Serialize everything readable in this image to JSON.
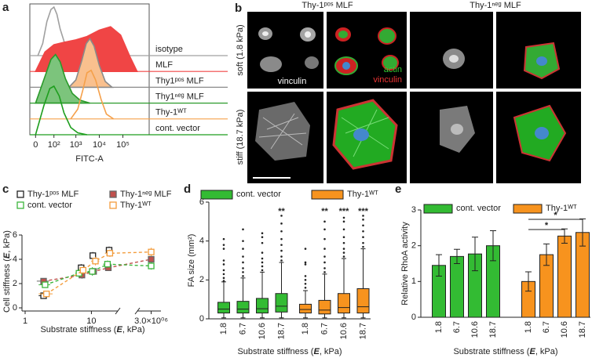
{
  "chart_data": [
    {
      "panel": "a",
      "type": "density",
      "xlabel": "FITC-A",
      "xscale": "symlog",
      "xlim": [
        -15,
        1300000
      ],
      "ylim": [
        0,
        100
      ],
      "xticks": [
        0,
        {
          "value": 100,
          "label": "10²"
        },
        {
          "value": 1000,
          "label": "10³"
        },
        {
          "value": 10000,
          "label": "10⁴"
        },
        {
          "value": 100000,
          "label": "10⁵"
        }
      ],
      "series": [
        {
          "name": "isotype",
          "color": "#a0a0a0",
          "filled": false,
          "x": [
            5,
            20,
            40,
            70,
            100,
            140,
            200,
            350,
            700,
            1500
          ],
          "values": [
            0,
            25,
            70,
            95,
            100,
            85,
            55,
            20,
            5,
            0
          ]
        },
        {
          "name": "MLF",
          "color": "#f04545",
          "filled": true,
          "x": [
            0,
            30,
            100,
            300,
            1000,
            3000,
            10000,
            30000,
            80000,
            200000,
            400000
          ],
          "values": [
            0,
            40,
            55,
            60,
            65,
            72,
            85,
            92,
            75,
            30,
            0
          ]
        },
        {
          "name": "Thy1ᵖᵒˢ MLF",
          "color": "#f9c08e",
          "edgecolor": "#8a8a8a",
          "filled": true,
          "x": [
            500,
            1000,
            1800,
            2800,
            4000,
            6000,
            10000,
            18000,
            35000
          ],
          "values": [
            0,
            15,
            55,
            90,
            100,
            85,
            45,
            12,
            0
          ]
        },
        {
          "name": "Thy1ⁿᵉᵍ MLF",
          "color": "#7cc47c",
          "edgecolor": "#2a9a2a",
          "filled": true,
          "x": [
            0,
            30,
            70,
            120,
            200,
            350,
            700,
            1500,
            4000
          ],
          "values": [
            0,
            55,
            90,
            100,
            85,
            50,
            20,
            6,
            0
          ]
        },
        {
          "name": "Thy-1ᵂᵀ",
          "color": "#f5a04a",
          "filled": false,
          "x": [
            600,
            1200,
            2000,
            3000,
            4500,
            7000,
            12000,
            20000,
            40000
          ],
          "values": [
            0,
            20,
            60,
            95,
            100,
            80,
            40,
            10,
            0
          ]
        },
        {
          "name": "cont. vector",
          "color": "#1e9e1e",
          "filled": false,
          "x": [
            0,
            25,
            60,
            100,
            180,
            300,
            600,
            1200,
            3000
          ],
          "values": [
            0,
            60,
            95,
            100,
            80,
            45,
            15,
            4,
            0
          ]
        }
      ]
    },
    {
      "panel": "c",
      "type": "scatter",
      "xlabel": [
        "Substrate stiffness (",
        "E",
        ", kPa)"
      ],
      "ylabel": [
        "Cell stiffness (",
        "E",
        ", kPa)"
      ],
      "xscale": "log",
      "xlim": [
        1,
        4000000
      ],
      "xbreak": [
        25,
        2000000
      ],
      "ylim": [
        0,
        6
      ],
      "yticks": [
        0,
        2,
        4,
        6
      ],
      "xticks": [
        1,
        10,
        {
          "value": 3000000,
          "label": "3.0×10⁰⁶"
        }
      ],
      "series": [
        {
          "name": "Thy-1ᵖᵒˢ MLF",
          "color": "#222222",
          "facecolor": "none",
          "x": [
            1.9,
            7.0,
            10.5,
            18.5
          ],
          "values": [
            1.0,
            3.3,
            4.3,
            4.75
          ],
          "xerr": [
            0.3,
            0.6,
            1.0,
            2.0
          ],
          "yerr": [
            0.2,
            0.3,
            0.3,
            0.3
          ]
        },
        {
          "name": "Thy-1ⁿᵉᵍ MLF",
          "color": "#666666",
          "facecolor": "#c0504d",
          "linestyle": "dashed",
          "x": [
            1.9,
            7.2,
            10.8,
            18.0,
            3000000
          ],
          "values": [
            2.2,
            2.7,
            3.0,
            3.3,
            4.0
          ],
          "xerr": [
            0.4,
            0.7,
            1.2,
            2.0,
            0
          ],
          "yerr": [
            0.25,
            0.3,
            0.3,
            0.25,
            0.3
          ]
        },
        {
          "name": "cont. vector",
          "color": "#3cb53c",
          "facecolor": "none",
          "linestyle": "dashed",
          "x": [
            2.0,
            6.5,
            10.3,
            17.5,
            3000000
          ],
          "values": [
            1.9,
            2.85,
            3.0,
            3.6,
            3.45
          ],
          "xerr": [
            0.4,
            0.8,
            1.5,
            2.5,
            0
          ],
          "yerr": [
            0.2,
            0.35,
            0.35,
            0.3,
            0.3
          ]
        },
        {
          "name": "Thy-1ᵂᵀ",
          "color": "#f39c3c",
          "facecolor": "none",
          "linestyle": "dashed",
          "x": [
            2.1,
            7.5,
            11.5,
            19.0,
            3000000
          ],
          "values": [
            1.15,
            3.1,
            3.85,
            4.5,
            4.6
          ],
          "xerr": [
            0.5,
            0.9,
            1.6,
            3.0,
            0
          ],
          "yerr": [
            0.2,
            0.3,
            0.35,
            0.3,
            0.35
          ]
        }
      ]
    },
    {
      "panel": "d",
      "type": "box",
      "ylabel": "FA size (mm²)",
      "xlabel": [
        "Substrate stiffness (",
        "E",
        ", kPa)"
      ],
      "ylim": [
        0,
        6
      ],
      "yticks": [
        0,
        2,
        4,
        6
      ],
      "series": [
        {
          "name": "cont. vector",
          "color": "#33bb33",
          "categories": [
            "1.8",
            "6.7",
            "10.6",
            "18.7"
          ],
          "whislo": [
            0.05,
            0.05,
            0.05,
            0.05
          ],
          "q1": [
            0.3,
            0.3,
            0.3,
            0.35
          ],
          "median": [
            0.5,
            0.5,
            0.52,
            0.65
          ],
          "q3": [
            0.85,
            0.9,
            1.05,
            1.3
          ],
          "whishi": [
            1.9,
            2.1,
            2.4,
            2.9
          ],
          "outliers": [
            [
              1.95,
              2.1,
              2.3,
              2.5,
              2.8,
              3.0,
              3.6,
              3.8,
              4.1
            ],
            [
              2.2,
              2.4,
              2.6,
              2.9,
              3.2,
              3.6,
              4.0,
              4.6
            ],
            [
              2.5,
              2.7,
              2.9,
              3.1,
              3.4,
              3.9,
              4.2,
              4.4
            ],
            [
              3.0,
              3.2,
              3.5,
              3.8,
              4.1,
              4.5,
              4.9,
              5.3
            ]
          ],
          "annotations": [
            null,
            null,
            null,
            "**"
          ]
        },
        {
          "name": "Thy-1ᵂᵀ",
          "color": "#f7931e",
          "categories": [
            "1.8",
            "6.7",
            "10.6",
            "18.7"
          ],
          "whislo": [
            0.05,
            0.05,
            0.05,
            0.05
          ],
          "q1": [
            0.3,
            0.25,
            0.3,
            0.3
          ],
          "median": [
            0.48,
            0.45,
            0.58,
            0.62
          ],
          "q3": [
            0.75,
            0.95,
            1.3,
            1.55
          ],
          "whishi": [
            1.45,
            2.3,
            3.1,
            3.6
          ],
          "outliers": [
            [
              1.6,
              1.8,
              2.0,
              2.2,
              2.8,
              2.9,
              3.6
            ],
            [
              2.4,
              2.6,
              2.9,
              3.2,
              3.6,
              4.1,
              4.6,
              5.0
            ],
            [
              3.2,
              3.4,
              3.6,
              3.9,
              4.2,
              4.6,
              5.0,
              5.2
            ],
            [
              3.7,
              3.9,
              4.2,
              4.5,
              4.8,
              5.1,
              5.3
            ]
          ],
          "annotations": [
            null,
            "**",
            "***",
            "***"
          ]
        }
      ]
    },
    {
      "panel": "e",
      "type": "bar",
      "ylabel": "Relative RhoA activity",
      "xlabel": [
        "Substrate stiffness (",
        "E",
        ", kPa)"
      ],
      "ylim": [
        0,
        3
      ],
      "yticks": [
        0,
        1,
        2,
        3
      ],
      "series": [
        {
          "name": "cont. vector",
          "color": "#33bb33",
          "categories": [
            "1.8",
            "6.7",
            "10.6",
            "18.7"
          ],
          "values": [
            1.45,
            1.7,
            1.77,
            2.0
          ],
          "errors": [
            0.3,
            0.2,
            0.47,
            0.42
          ]
        },
        {
          "name": "Thy-1ᵂᵀ",
          "color": "#f7931e",
          "categories": [
            "1.8",
            "6.7",
            "10.6",
            "18.7"
          ],
          "values": [
            1.0,
            1.75,
            2.27,
            2.37
          ],
          "errors": [
            0.27,
            0.3,
            0.2,
            0.38
          ]
        }
      ],
      "annotations": [
        "*",
        "*"
      ]
    }
  ],
  "panel_b": {
    "panel": "b",
    "columns": [
      "Thy-1ᵖᵒˢ MLF",
      "Thy-1ⁿᵉᵍ MLF"
    ],
    "rows": [
      "soft (1.8 kPa)",
      "stiff (18.7 kPa)"
    ],
    "channels": [
      "vinculin",
      "actin",
      "vinculin"
    ]
  }
}
